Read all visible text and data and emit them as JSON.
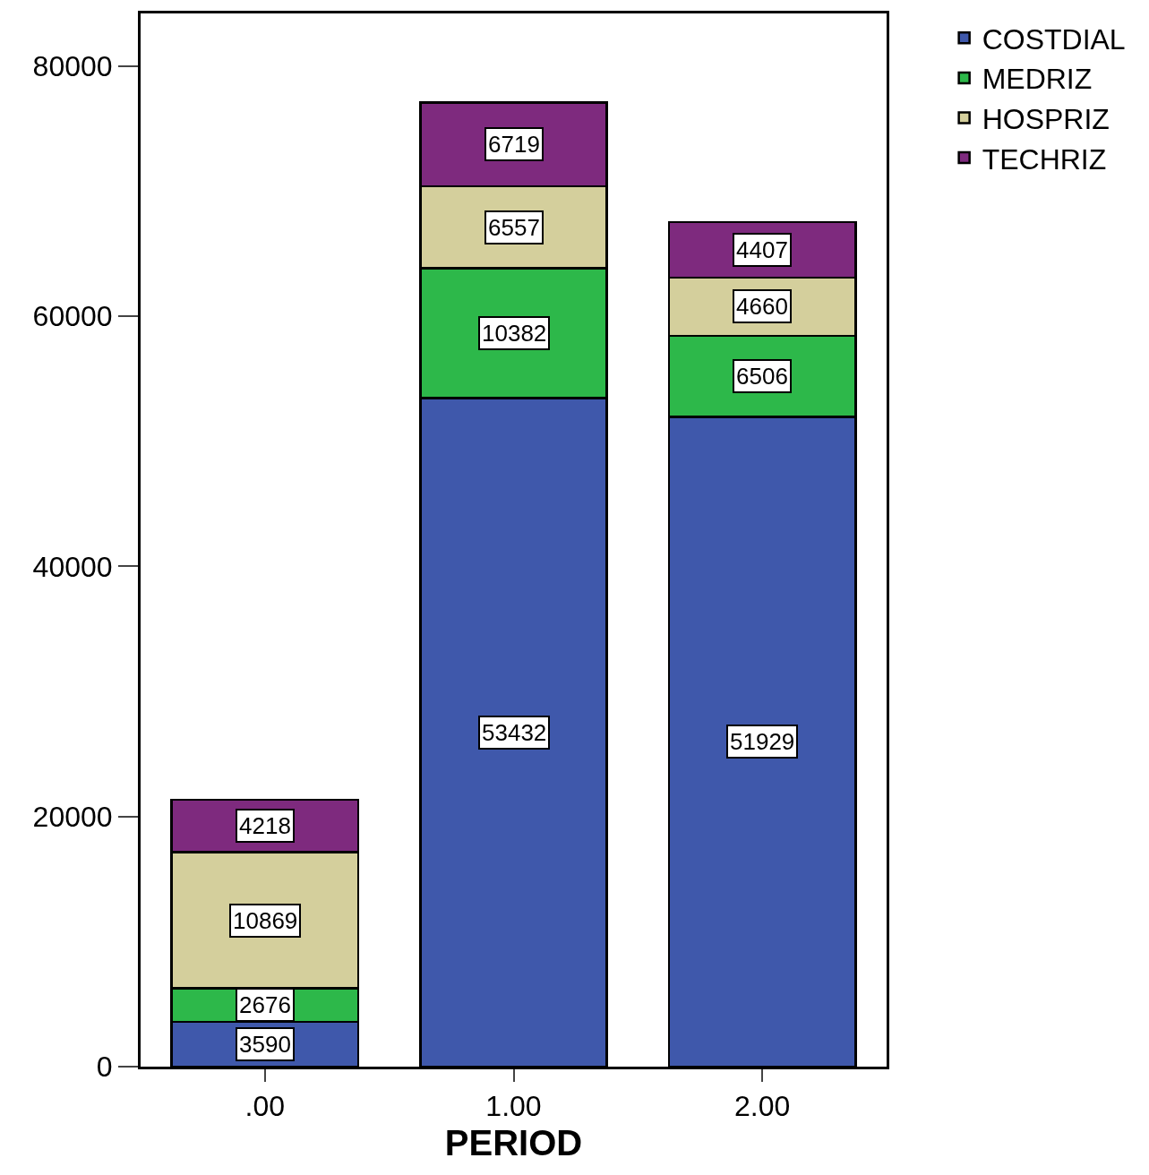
{
  "chart_data": {
    "type": "bar",
    "stacked": true,
    "xlabel": "PERIOD",
    "categories": [
      ".00",
      "1.00",
      "2.00"
    ],
    "series": [
      {
        "name": "COSTDIAL",
        "color": "#3f58ab",
        "values": [
          3590,
          53432,
          51929
        ]
      },
      {
        "name": "MEDRIZ",
        "color": "#2db84a",
        "values": [
          2676,
          10382,
          6506
        ]
      },
      {
        "name": "HOSPRIZ",
        "color": "#d4cf9c",
        "values": [
          10869,
          6557,
          4660
        ]
      },
      {
        "name": "TECHRIZ",
        "color": "#7e2a7e",
        "values": [
          4218,
          6719,
          4407
        ]
      }
    ],
    "ylim": [
      0,
      84200
    ],
    "yticks": [
      0,
      20000,
      40000,
      60000,
      80000
    ],
    "data_labels": true,
    "legend": "top right"
  }
}
